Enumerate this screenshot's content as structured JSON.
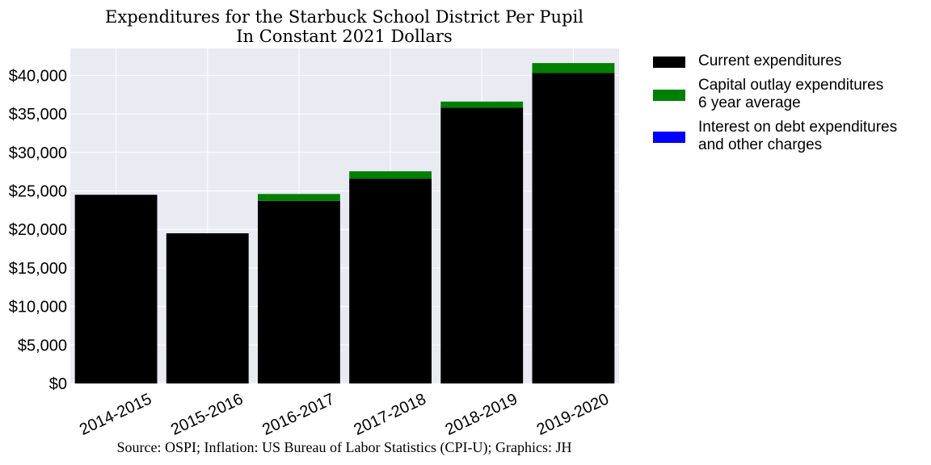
{
  "chart_data": {
    "type": "bar",
    "stacked": true,
    "title": "Expenditures for the Starbuck School District Per Pupil",
    "subtitle": "In Constant 2021 Dollars",
    "source": "Source: OSPI; Inflation: US Bureau of Labor Statistics (CPI-U); Graphics: JH",
    "categories": [
      "2014-2015",
      "2015-2016",
      "2016-2017",
      "2017-2018",
      "2018-2019",
      "2019-2020"
    ],
    "series": [
      {
        "name": "Current expenditures",
        "color": "#000000",
        "values": [
          24500,
          19500,
          23700,
          26600,
          35800,
          40300
        ]
      },
      {
        "name": "Capital outlay expenditures\n6 year average",
        "color": "#008000",
        "values": [
          0,
          0,
          900,
          950,
          800,
          1300
        ]
      },
      {
        "name": "Interest on debt expenditures\nand other charges",
        "color": "#0000ff",
        "values": [
          0,
          0,
          0,
          0,
          0,
          0
        ]
      }
    ],
    "yticks": [
      0,
      5000,
      10000,
      15000,
      20000,
      25000,
      30000,
      35000,
      40000
    ],
    "ytick_labels": [
      "$0",
      "$5,000",
      "$10,000",
      "$15,000",
      "$20,000",
      "$25,000",
      "$30,000",
      "$35,000",
      "$40,000"
    ],
    "ylim": [
      0,
      43500
    ],
    "xtick_rotation": 25,
    "grid": true,
    "plot_background": "#eaeaf2",
    "grid_color": "#ffffff",
    "legend_placement": "outside-right-top"
  }
}
